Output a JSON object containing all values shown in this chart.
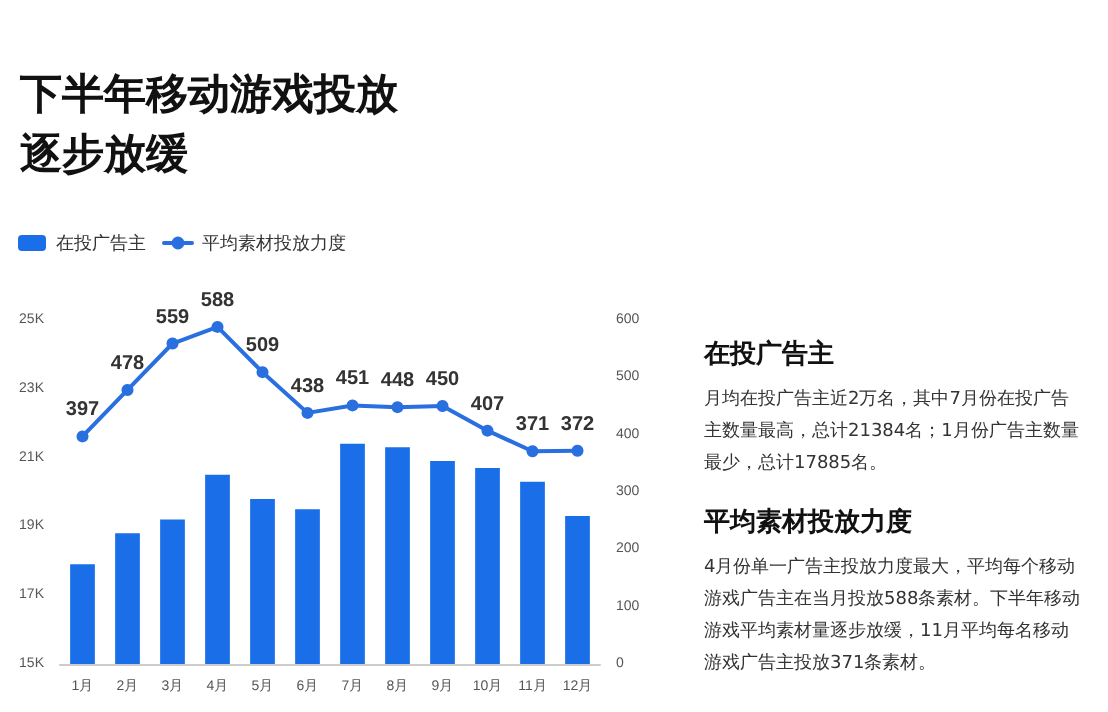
{
  "chart_data": {
    "type": "bar",
    "title": "下半年移动游戏投放逐步放缓",
    "categories": [
      "1月",
      "2月",
      "3月",
      "4月",
      "5月",
      "6月",
      "7月",
      "8月",
      "9月",
      "10月",
      "11月",
      "12月"
    ],
    "series": [
      {
        "name": "在投广告主",
        "color": "#1a6fe8",
        "values": [
          17900,
          18800,
          19200,
          20500,
          19800,
          19500,
          21400,
          21300,
          20900,
          20700,
          20300,
          19300
        ]
      },
      {
        "name": "平均素材投放力度",
        "type": "line",
        "axis": "y2",
        "color": "#2a6fe0",
        "values": [
          397,
          478,
          559,
          588,
          509,
          438,
          451,
          448,
          450,
          407,
          371,
          372
        ],
        "value_labels": [
          "397",
          "478",
          "559",
          "588",
          "509",
          "438",
          "451",
          "448",
          "450",
          "407",
          "371",
          "372"
        ]
      }
    ],
    "ylim": [
      15000,
      25000
    ],
    "yticks": [
      {
        "value": 15000,
        "label": "15K"
      },
      {
        "value": 17000,
        "label": "17K"
      },
      {
        "value": 19000,
        "label": "19K"
      },
      {
        "value": 21000,
        "label": "21K"
      },
      {
        "value": 23000,
        "label": "23K"
      },
      {
        "value": 25000,
        "label": "25K"
      }
    ],
    "y2lim": [
      0,
      600
    ],
    "y2ticks": [
      0,
      100,
      200,
      300,
      400,
      500,
      600
    ],
    "legend": "top left",
    "marker": "circle",
    "annotations": [
      "在投广告主",
      "月均在投广告主近2万名，其中7月份在投广告主数量最高，总计21384名；1月份广告主数量最少，总计17885名。",
      "平均素材投放力度",
      "4月份单一广告主投放力度最大，平均每个移动游戏广告主在当月投放588条素材。下半年移动游戏平均素材量逐步放缓，11月平均每名移动游戏广告主投放371条素材。"
    ]
  }
}
